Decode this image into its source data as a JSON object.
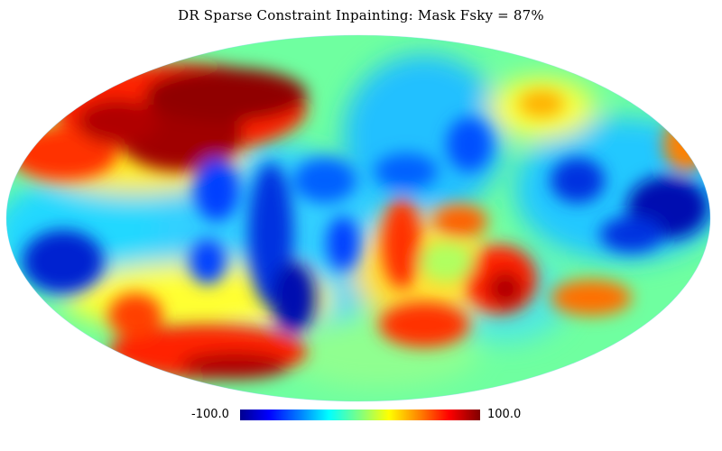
{
  "title": "DR Sparse Constraint Inpainting: Mask Fsky = 87%",
  "map": {
    "projection": "mollweide",
    "colormap": [
      "#00008f",
      "#0000ff",
      "#0080ff",
      "#00ffff",
      "#80ff80",
      "#ffff00",
      "#ff8000",
      "#ff0000",
      "#800000"
    ]
  },
  "colorbar": {
    "min_label": "-100.0",
    "max_label": "100.0"
  }
}
